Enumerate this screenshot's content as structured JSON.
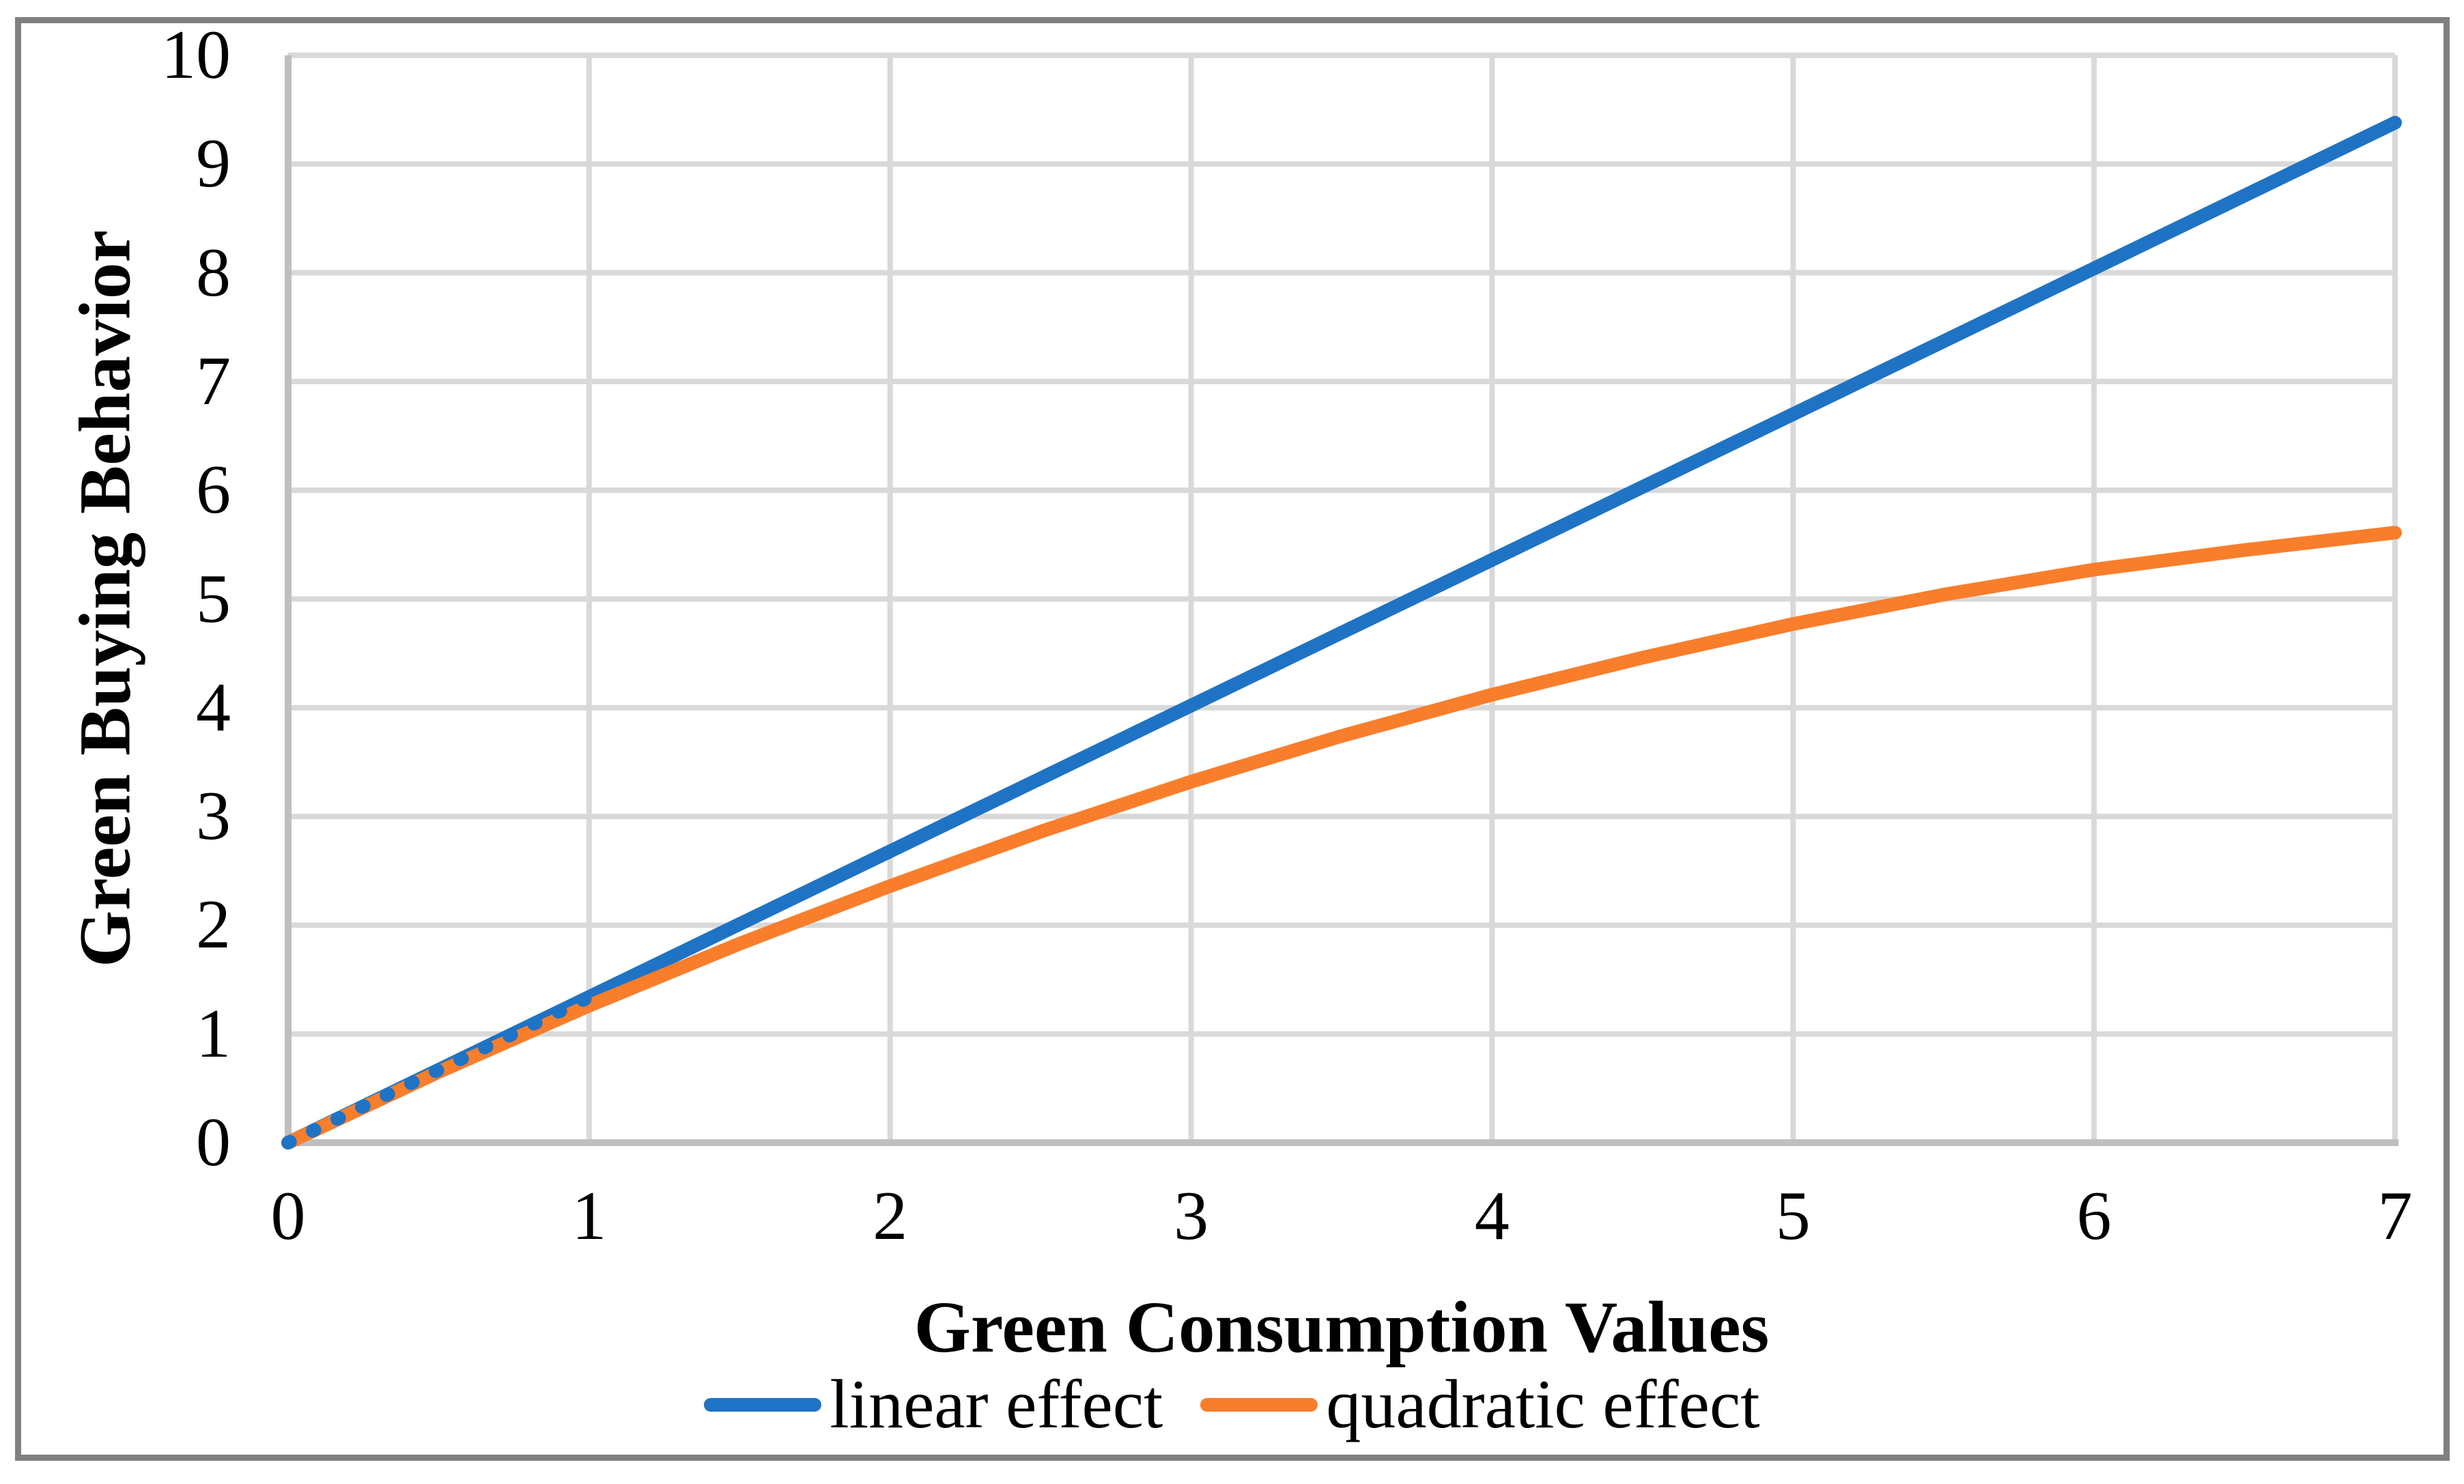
{
  "chart_data": {
    "type": "line",
    "title": "",
    "xlabel": "Green Consumption Values",
    "ylabel": "Green Buying Behavior",
    "xlim": [
      0,
      7
    ],
    "ylim": [
      0,
      10
    ],
    "xticks": [
      0,
      1,
      2,
      3,
      4,
      5,
      6,
      7
    ],
    "yticks": [
      0,
      1,
      2,
      3,
      4,
      5,
      6,
      7,
      8,
      9,
      10
    ],
    "grid": "on",
    "legend_position": "bottom",
    "x": [
      0,
      0.5,
      1,
      1.5,
      2,
      2.5,
      3,
      3.5,
      4,
      4.5,
      5,
      5.5,
      6,
      6.5,
      7
    ],
    "series": [
      {
        "name": "linear effect",
        "color": "#1F73C5",
        "values": [
          0,
          0.67,
          1.34,
          2.01,
          2.68,
          3.35,
          4.02,
          4.69,
          5.36,
          6.03,
          6.7,
          7.37,
          8.04,
          8.71,
          9.38
        ]
      },
      {
        "name": "quadratic effect",
        "color": "#F87E2C",
        "values": [
          0,
          0.65,
          1.26,
          1.83,
          2.36,
          2.86,
          3.32,
          3.74,
          4.12,
          4.46,
          4.77,
          5.04,
          5.27,
          5.45,
          5.61
        ]
      }
    ]
  },
  "styles": {
    "gridline_color": "#D9D9D9",
    "axis_line_color": "#BFBFBF",
    "frame_border_color": "#808080",
    "text_color": "#000000",
    "background_color": "#FFFFFF"
  }
}
